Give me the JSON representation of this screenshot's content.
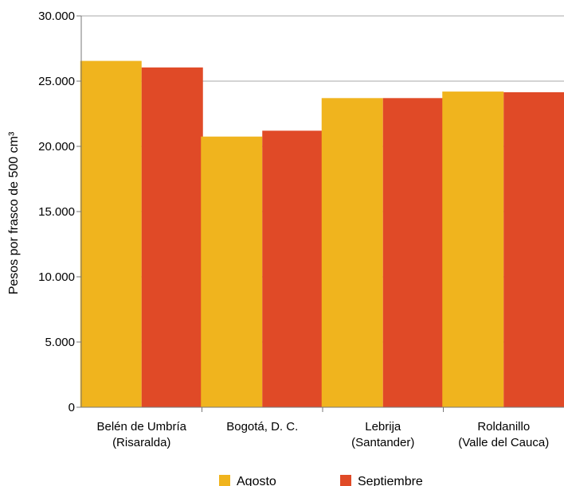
{
  "chart_data": {
    "type": "bar",
    "categories": [
      [
        "Belén de Umbría",
        "(Risaralda)"
      ],
      [
        "Bogotá, D. C."
      ],
      [
        "Lebrija",
        "(Santander)"
      ],
      [
        "Roldanillo",
        "(Valle del Cauca)"
      ]
    ],
    "series": [
      {
        "name": "Agosto",
        "color": "#f0b41e",
        "values": [
          26550,
          20750,
          23700,
          24200
        ]
      },
      {
        "name": "Septiembre",
        "color": "#e04a27",
        "values": [
          26050,
          21200,
          23700,
          24150
        ]
      }
    ],
    "ylabel": "Pesos por frasco de 500 cm³",
    "xlabel": "",
    "ylim": [
      0,
      30000
    ],
    "yticks": [
      0,
      5000,
      10000,
      15000,
      20000,
      25000,
      30000
    ],
    "ytick_labels": [
      "0",
      "5.000",
      "10.000",
      "15.000",
      "20.000",
      "25.000",
      "30.000"
    ],
    "grid": true,
    "legend_position": "bottom-center"
  }
}
